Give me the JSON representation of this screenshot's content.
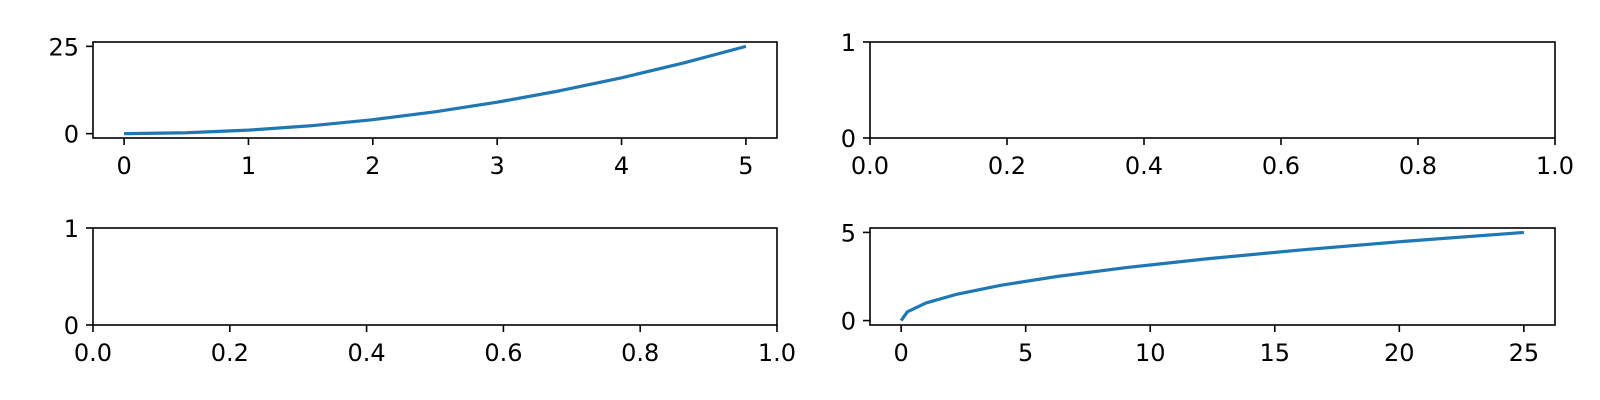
{
  "figure": {
    "background": "#ffffff",
    "line_color": "#1f77b4"
  },
  "chart_data": [
    {
      "type": "line",
      "title": "",
      "xlabel": "",
      "ylabel": "",
      "xlim": [
        -0.25,
        5.25
      ],
      "ylim": [
        -1.25,
        26.25
      ],
      "xticks": [
        0,
        1,
        2,
        3,
        4,
        5
      ],
      "xtick_labels": [
        "0",
        "1",
        "2",
        "3",
        "4",
        "5"
      ],
      "yticks": [
        0,
        25
      ],
      "ytick_labels": [
        "0",
        "25"
      ],
      "grid": false,
      "series": [
        {
          "x": [
            0,
            0.5,
            1,
            1.5,
            2,
            2.5,
            3,
            3.5,
            4,
            4.5,
            5
          ],
          "y": [
            0,
            0.25,
            1,
            2.25,
            4,
            6.25,
            9,
            12.25,
            16,
            20.25,
            25
          ]
        }
      ]
    },
    {
      "type": "line",
      "title": "",
      "xlabel": "",
      "ylabel": "",
      "xlim": [
        0,
        1
      ],
      "ylim": [
        0,
        1
      ],
      "xticks": [
        0,
        0.2,
        0.4,
        0.6,
        0.8,
        1
      ],
      "xtick_labels": [
        "0.0",
        "0.2",
        "0.4",
        "0.6",
        "0.8",
        "1.0"
      ],
      "yticks": [
        0,
        1
      ],
      "ytick_labels": [
        "0",
        "1"
      ],
      "grid": false,
      "series": []
    },
    {
      "type": "line",
      "title": "",
      "xlabel": "",
      "ylabel": "",
      "xlim": [
        0,
        1
      ],
      "ylim": [
        0,
        1
      ],
      "xticks": [
        0,
        0.2,
        0.4,
        0.6,
        0.8,
        1
      ],
      "xtick_labels": [
        "0.0",
        "0.2",
        "0.4",
        "0.6",
        "0.8",
        "1.0"
      ],
      "yticks": [
        0,
        1
      ],
      "ytick_labels": [
        "0",
        "1"
      ],
      "grid": false,
      "series": []
    },
    {
      "type": "line",
      "title": "",
      "xlabel": "",
      "ylabel": "",
      "xlim": [
        -1.25,
        26.25
      ],
      "ylim": [
        -0.25,
        5.25
      ],
      "xticks": [
        0,
        5,
        10,
        15,
        20,
        25
      ],
      "xtick_labels": [
        "0",
        "5",
        "10",
        "15",
        "20",
        "25"
      ],
      "yticks": [
        0,
        5
      ],
      "ytick_labels": [
        "0",
        "5"
      ],
      "grid": false,
      "series": [
        {
          "x": [
            0,
            0.25,
            1,
            2.25,
            4,
            6.25,
            9,
            12.25,
            16,
            20.25,
            25
          ],
          "y": [
            0,
            0.5,
            1,
            1.5,
            2,
            2.5,
            3,
            3.5,
            4,
            4.5,
            5
          ]
        }
      ]
    }
  ]
}
